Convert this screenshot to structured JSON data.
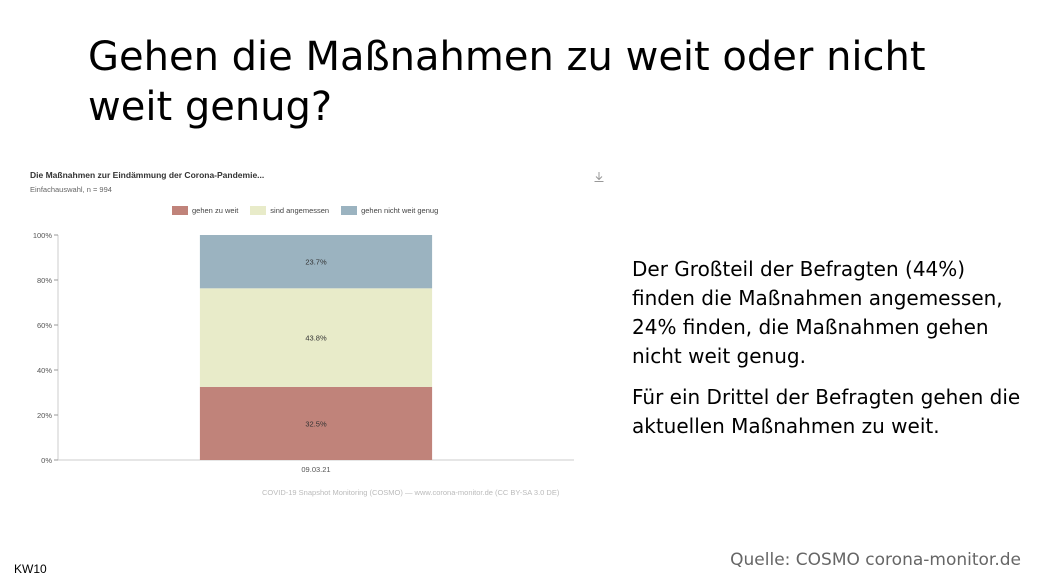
{
  "slide": {
    "title": "Gehen die Maßnahmen zu weit oder nicht weit genug?",
    "body": [
      "Der Großteil der Befragten (44%) finden die Maßnahmen angemessen, 24% finden, die Maßnahmen gehen nicht weit genug.",
      "Für ein Drittel der Befragten gehen die aktuellen Maßnahmen zu weit."
    ],
    "source": "Quelle: COSMO corona-monitor.de",
    "week": "KW10"
  },
  "chart_data": {
    "type": "bar",
    "stacked": true,
    "title": "Die Maßnahmen zur Eindämmung der Corona-Pandemie...",
    "subtitle": "Einfachauswahl, n = 994",
    "categories": [
      "09.03.21"
    ],
    "series": [
      {
        "name": "gehen zu weit",
        "values": [
          32.5
        ],
        "label": "32.5%",
        "color": "#c0837a"
      },
      {
        "name": "sind angemessen",
        "values": [
          43.8
        ],
        "label": "43.8%",
        "color": "#e8ebc9"
      },
      {
        "name": "gehen nicht weit genug",
        "values": [
          23.7
        ],
        "label": "23.7%",
        "color": "#9bb3c0"
      }
    ],
    "yticks": [
      "0%",
      "20%",
      "40%",
      "60%",
      "80%",
      "100%"
    ],
    "ylim": [
      0,
      100
    ],
    "grid": false,
    "legend": "top",
    "credit": "COVID-19 Snapshot Monitoring (COSMO) — www.corona-monitor.de (CC BY-SA 3.0 DE)",
    "download_icon": "download-icon"
  }
}
